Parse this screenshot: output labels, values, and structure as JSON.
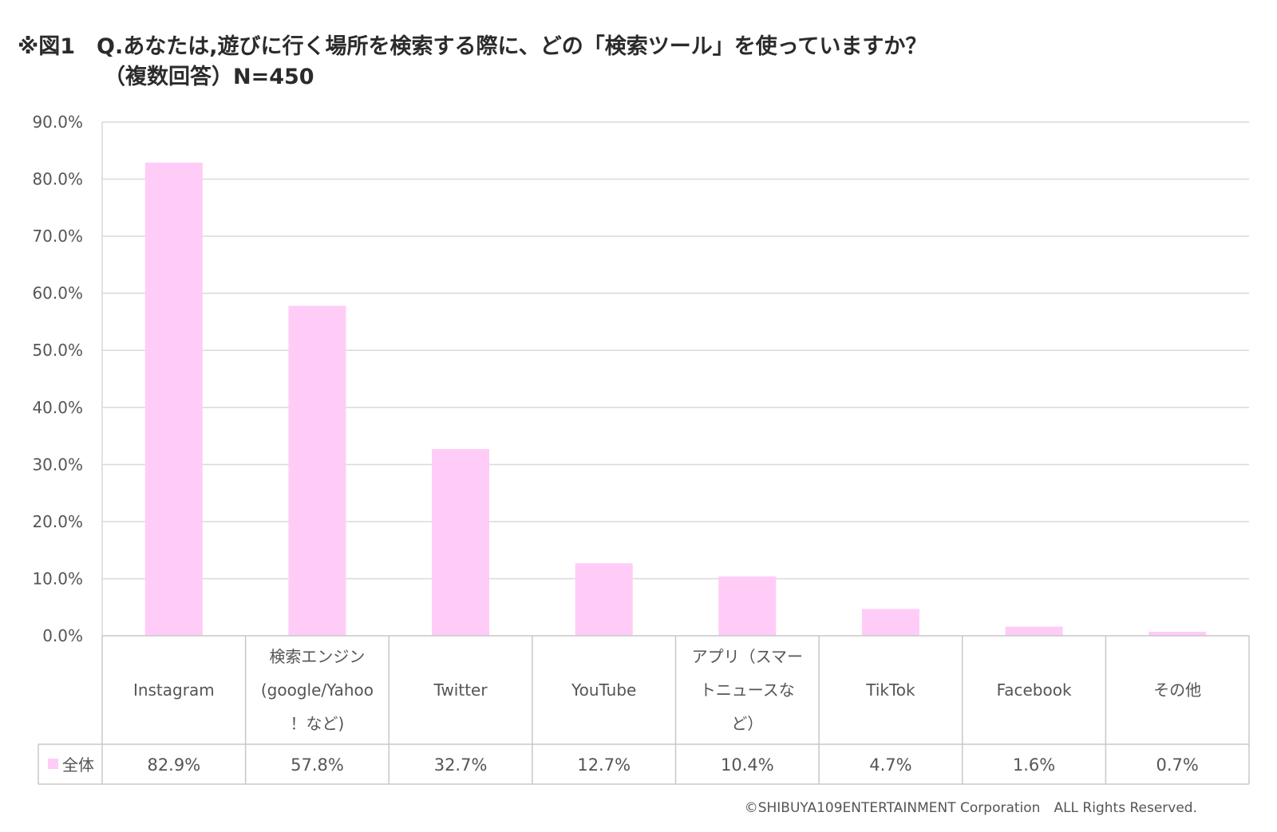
{
  "chart_data": {
    "type": "bar",
    "title_line1": "※図1　Q.あなたは,遊びに行く場所を検索する際に、どの「検索ツール」を使っていますか？",
    "title_line2": "（複数回答）N=450",
    "y_ticks": [
      "0.0%",
      "10.0%",
      "20.0%",
      "30.0%",
      "40.0%",
      "50.0%",
      "60.0%",
      "70.0%",
      "80.0%",
      "90.0%"
    ],
    "ylim": [
      0,
      90
    ],
    "grid": true,
    "categories": [
      [
        "Instagram"
      ],
      [
        "検索エンジン",
        "(google/Yahoo",
        "！など)"
      ],
      [
        "Twitter"
      ],
      [
        "YouTube"
      ],
      [
        "アプリ（スマー",
        "トニュースな",
        "ど）"
      ],
      [
        "TikTok"
      ],
      [
        "Facebook"
      ],
      [
        "その他"
      ]
    ],
    "series": [
      {
        "name": "全体",
        "values": [
          82.9,
          57.8,
          32.7,
          12.7,
          10.4,
          4.7,
          1.6,
          0.7
        ],
        "labels": [
          "82.9%",
          "57.8%",
          "32.7%",
          "12.7%",
          "10.4%",
          "4.7%",
          "1.6%",
          "0.7%"
        ],
        "color": "#ffccf7"
      }
    ],
    "legend": "data-table"
  },
  "footer": "©SHIBUYA109ENTERTAINMENT Corporation　ALL Rights Reserved."
}
